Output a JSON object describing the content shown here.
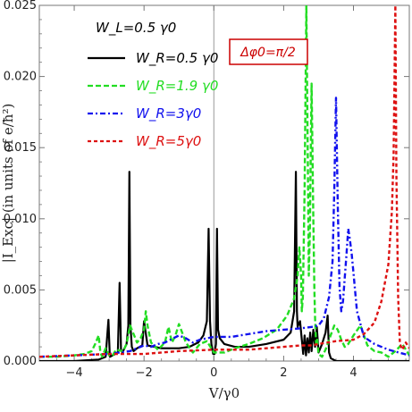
{
  "chart_data": {
    "type": "line",
    "xlabel": "V/γ0",
    "ylabel": "|I_Exc| (in units of e/ħ²)",
    "xlim": [
      -5,
      5.6
    ],
    "ylim": [
      0,
      0.025
    ],
    "x_ticks": [
      {
        "value": -4,
        "label": "−4"
      },
      {
        "value": -2,
        "label": "−2"
      },
      {
        "value": 0,
        "label": "0"
      },
      {
        "value": 2,
        "label": "2"
      },
      {
        "value": 4,
        "label": "4"
      }
    ],
    "y_ticks": [
      {
        "value": 0,
        "label": "0.000"
      },
      {
        "value": 0.005,
        "label": "0.005"
      },
      {
        "value": 0.01,
        "label": "0.010"
      },
      {
        "value": 0.015,
        "label": "0.015"
      },
      {
        "value": 0.02,
        "label": "0.020"
      },
      {
        "value": 0.025,
        "label": "0.025"
      }
    ],
    "legend_header": "W_L=0.5 γ0",
    "annotation": "Δφ0=π/2",
    "colors": {
      "black": "#000000",
      "green": "#22dd22",
      "blue": "#1111ee",
      "red": "#dd1111",
      "annotation": "#cc0000"
    },
    "series": [
      {
        "name": "W_R=0.5 γ0",
        "color": "#000000",
        "dash": "solid",
        "x": [
          -5,
          -4,
          -3.3,
          -3.1,
          -3.02,
          -2.98,
          -2.9,
          -2.75,
          -2.7,
          -2.66,
          -2.62,
          -2.58,
          -2.5,
          -2.45,
          -2.42,
          -2.39,
          -2.35,
          -2.3,
          -2.2,
          -2.05,
          -2.0,
          -1.9,
          -1.5,
          -1.0,
          -0.7,
          -0.45,
          -0.3,
          -0.2,
          -0.15,
          -0.11,
          -0.07,
          -0.02,
          0.02,
          0.06,
          0.09,
          0.12,
          0.17,
          0.3,
          0.6,
          1.0,
          1.5,
          2.0,
          2.2,
          2.3,
          2.35,
          2.38,
          2.4,
          2.43,
          2.47,
          2.52,
          2.56,
          2.6,
          2.64,
          2.68,
          2.72,
          2.76,
          2.8,
          2.85,
          2.9,
          2.95,
          3.0,
          3.1,
          3.2,
          3.26,
          3.3,
          3.35,
          3.5,
          3.7,
          4.0,
          5.6
        ],
        "y": [
          0.0,
          0.0,
          0.0001,
          0.0003,
          0.0029,
          0.0003,
          0.0004,
          0.0006,
          0.0055,
          0.0008,
          0.0006,
          0.0008,
          0.0012,
          0.0025,
          0.0133,
          0.0025,
          0.001,
          0.0007,
          0.0009,
          0.0011,
          0.0028,
          0.0011,
          0.0009,
          0.0009,
          0.001,
          0.0013,
          0.0018,
          0.0028,
          0.0093,
          0.0028,
          0.0012,
          0.0005,
          0.0005,
          0.0012,
          0.0093,
          0.0022,
          0.0016,
          0.0012,
          0.001,
          0.001,
          0.0012,
          0.0015,
          0.002,
          0.0035,
          0.0133,
          0.0035,
          0.0024,
          0.0026,
          0.0028,
          0.0015,
          0.0005,
          0.0018,
          0.0004,
          0.0016,
          0.0006,
          0.002,
          0.0007,
          0.0022,
          0.001,
          0.0024,
          0.0006,
          0.0012,
          0.002,
          0.0032,
          0.0006,
          0.0002,
          0.0,
          0.0,
          0.0,
          0.0
        ]
      },
      {
        "name": "W_R=1.9 γ0",
        "color": "#22dd22",
        "dash": "6,3",
        "x": [
          -5,
          -4.5,
          -4.0,
          -3.7,
          -3.5,
          -3.4,
          -3.3,
          -3.25,
          -3.2,
          -3.1,
          -3.0,
          -2.9,
          -2.8,
          -2.6,
          -2.5,
          -2.4,
          -2.3,
          -2.2,
          -2.1,
          -2.0,
          -1.95,
          -1.9,
          -1.8,
          -1.6,
          -1.4,
          -1.3,
          -1.2,
          -1.1,
          -1.0,
          -0.8,
          -0.6,
          -0.4,
          -0.2,
          0.0,
          0.3,
          0.6,
          1.0,
          1.4,
          1.8,
          2.1,
          2.3,
          2.4,
          2.45,
          2.5,
          2.52,
          2.55,
          2.6,
          2.65,
          2.7,
          2.72,
          2.75,
          2.8,
          2.85,
          2.88,
          2.9,
          2.93,
          2.96,
          3.0,
          3.1,
          3.2,
          3.3,
          3.45,
          3.55,
          3.65,
          3.75,
          3.85,
          4.0,
          4.2,
          4.4,
          4.6,
          4.8,
          5.0,
          5.2,
          5.4,
          5.6
        ],
        "y": [
          0.0003,
          0.0003,
          0.0004,
          0.0005,
          0.0007,
          0.0012,
          0.0018,
          0.0006,
          0.0003,
          0.0009,
          0.0004,
          0.0004,
          0.0008,
          0.0007,
          0.0012,
          0.0025,
          0.0019,
          0.0013,
          0.0016,
          0.0022,
          0.0035,
          0.0025,
          0.0013,
          0.0008,
          0.0013,
          0.0024,
          0.0013,
          0.0018,
          0.0026,
          0.0013,
          0.0006,
          0.0012,
          0.0014,
          0.0006,
          0.0006,
          0.0009,
          0.0012,
          0.0016,
          0.0022,
          0.0032,
          0.0044,
          0.006,
          0.008,
          0.006,
          0.0035,
          0.0045,
          0.012,
          0.025,
          0.012,
          0.006,
          0.009,
          0.0195,
          0.01,
          0.005,
          0.003,
          0.0012,
          0.0015,
          0.0005,
          0.0003,
          0.0008,
          0.0015,
          0.0025,
          0.0022,
          0.0015,
          0.001,
          0.0012,
          0.0018,
          0.0025,
          0.0011,
          0.0007,
          0.0006,
          0.0003,
          0.0007,
          0.0012,
          0.0004
        ]
      },
      {
        "name": "W_R=3γ0",
        "color": "#1111ee",
        "dash": "6,3,2,3",
        "x": [
          -5,
          -4.0,
          -3.0,
          -2.4,
          -2.2,
          -2.0,
          -1.8,
          -1.6,
          -1.4,
          -1.0,
          -0.8,
          -0.6,
          -0.4,
          -0.2,
          0.0,
          0.5,
          1.0,
          1.5,
          2.0,
          2.5,
          2.8,
          3.0,
          3.15,
          3.3,
          3.4,
          3.45,
          3.5,
          3.55,
          3.6,
          3.65,
          3.7,
          3.8,
          3.85,
          3.9,
          3.95,
          4.0,
          4.1,
          4.3,
          4.6,
          5.0,
          5.3,
          5.6
        ],
        "y": [
          0.0003,
          0.0004,
          0.0005,
          0.0007,
          0.0009,
          0.0011,
          0.001,
          0.0012,
          0.0013,
          0.0018,
          0.0016,
          0.0013,
          0.0015,
          0.0016,
          0.0017,
          0.0017,
          0.0019,
          0.0021,
          0.0022,
          0.0023,
          0.0024,
          0.0025,
          0.003,
          0.0045,
          0.007,
          0.012,
          0.0185,
          0.011,
          0.0052,
          0.0035,
          0.0042,
          0.0075,
          0.0093,
          0.0085,
          0.0075,
          0.0062,
          0.0035,
          0.0017,
          0.0012,
          0.0008,
          0.0006,
          0.0004
        ]
      },
      {
        "name": "W_R=5γ0",
        "color": "#dd1111",
        "dash": "4,3",
        "x": [
          -5,
          -4.0,
          -3.0,
          -2.0,
          -1.0,
          0.0,
          1.0,
          1.5,
          2.0,
          2.5,
          2.8,
          3.0,
          3.5,
          4.0,
          4.3,
          4.6,
          4.8,
          5.0,
          5.1,
          5.15,
          5.2,
          5.23,
          5.28,
          5.33,
          5.4,
          5.5,
          5.6
        ],
        "y": [
          0.0003,
          0.0004,
          0.0005,
          0.0005,
          0.0007,
          0.0008,
          0.0008,
          0.0009,
          0.001,
          0.0011,
          0.0011,
          0.0012,
          0.0014,
          0.0015,
          0.0019,
          0.0027,
          0.0042,
          0.0068,
          0.0105,
          0.0145,
          0.025,
          0.013,
          0.0045,
          0.0012,
          0.0008,
          0.0013,
          0.0009
        ]
      }
    ]
  }
}
